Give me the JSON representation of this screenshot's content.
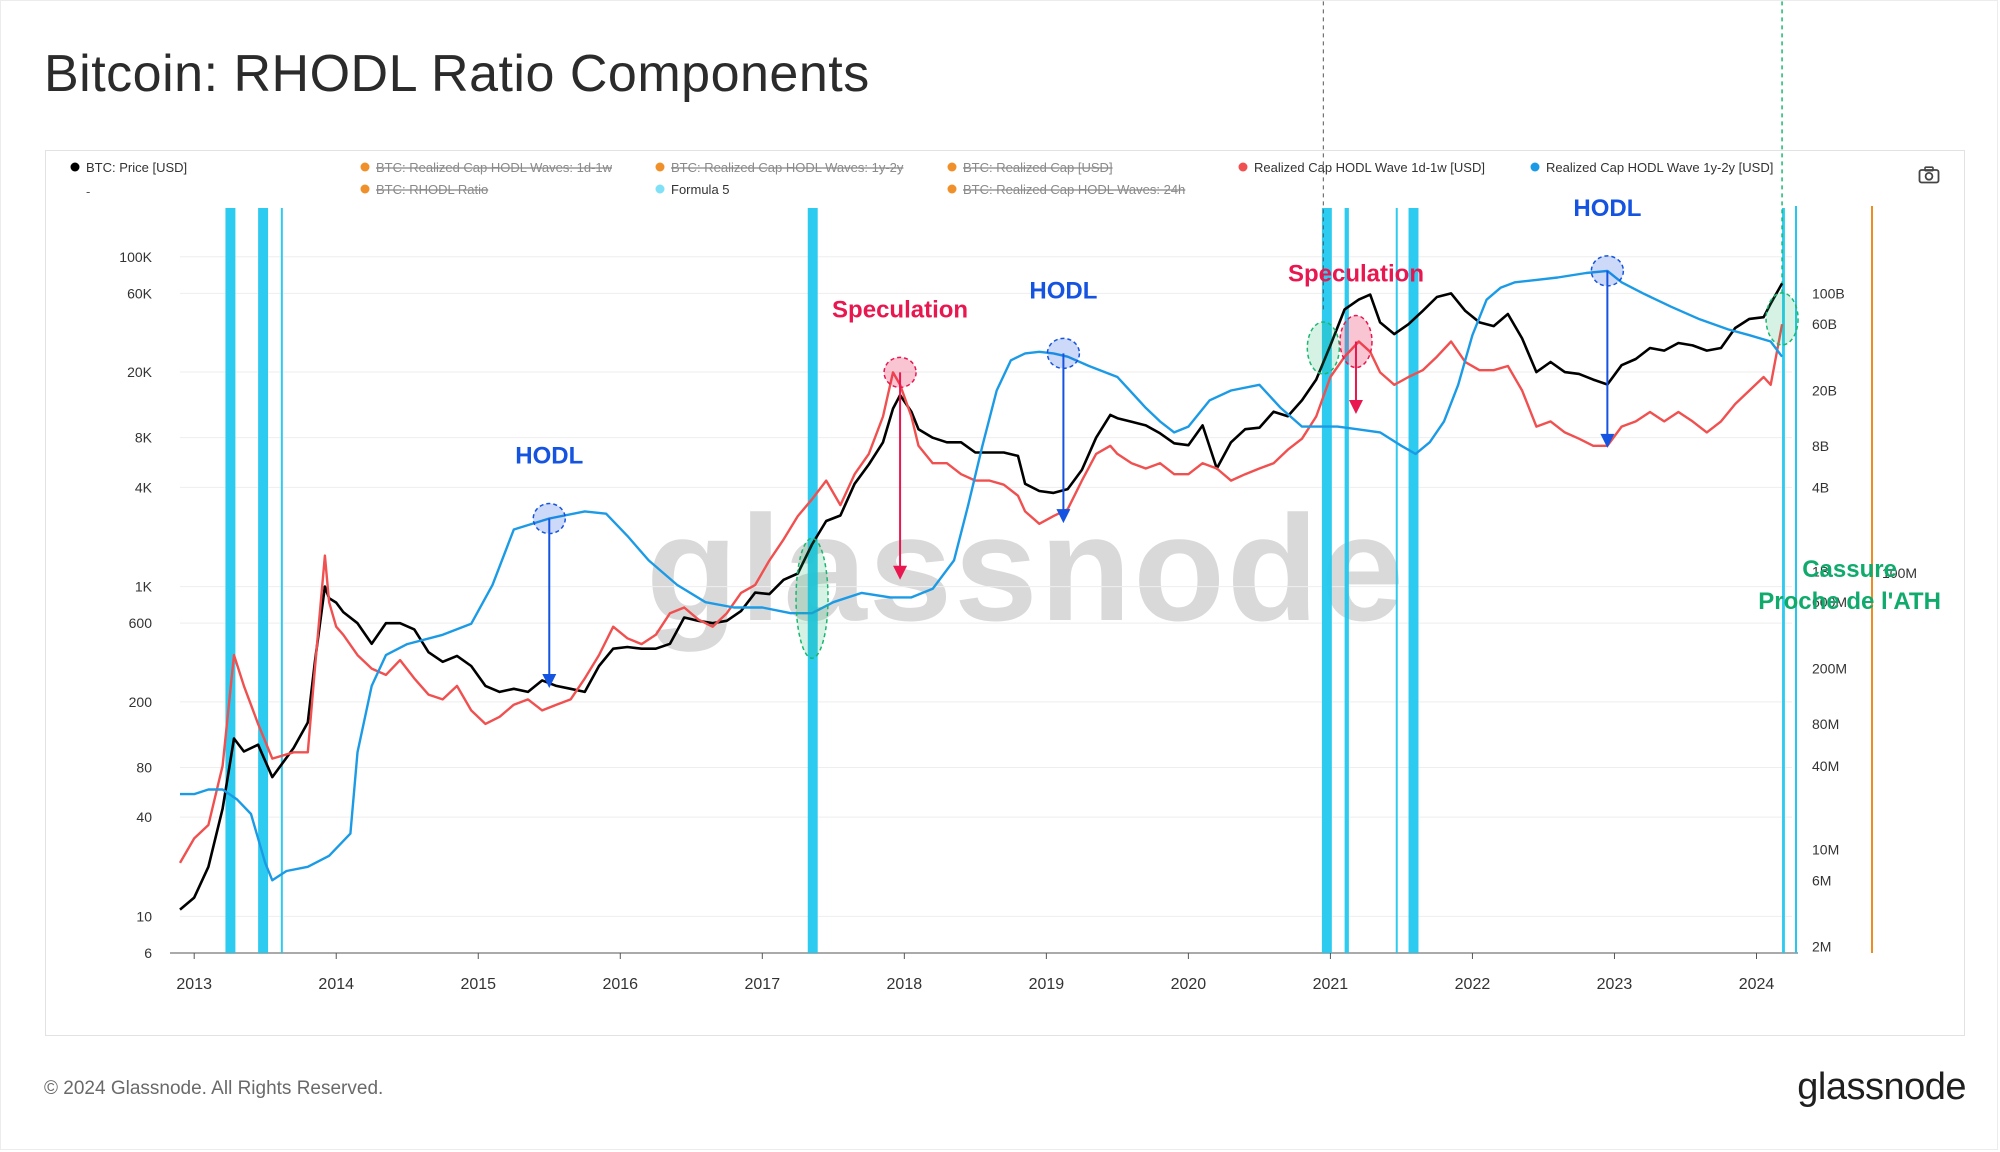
{
  "title": "Bitcoin: RHODL Ratio Components",
  "footer": {
    "copyright": "© 2024 Glassnode. All Rights Reserved.",
    "logo": "glassnode"
  },
  "watermark": "glassnode",
  "toolbar": {
    "camera_icon": "camera-icon"
  },
  "colors": {
    "price": "#000000",
    "wave_1d1w": "#f0504f",
    "wave_1y2y": "#1b9be6",
    "formula5": "#22c8ee",
    "disabled": "#f0902a",
    "speculation": "#e8174f",
    "hodl": "#1554e0",
    "cassure": "#10ab6c",
    "ref_line": "#19b86e",
    "orange_axis": "#ee8b22"
  },
  "chart_data": {
    "type": "line",
    "title": "Bitcoin: RHODL Ratio Components",
    "legend": [
      {
        "label": "BTC: Price [USD]",
        "color": "#000000",
        "disabled": false
      },
      {
        "label": "BTC: Realized Cap HODL Waves: 1d-1w",
        "color": "#f0902a",
        "disabled": true
      },
      {
        "label": "BTC: Realized Cap HODL Waves: 1y-2y",
        "color": "#f0902a",
        "disabled": true
      },
      {
        "label": "BTC: Realized Cap [USD]",
        "color": "#f0902a",
        "disabled": true
      },
      {
        "label": "Realized Cap HODL Wave 1d-1w [USD]",
        "color": "#f0504f",
        "disabled": false
      },
      {
        "label": "Realized Cap HODL Wave 1y-2y [USD]",
        "color": "#1b9be6",
        "disabled": false
      },
      {
        "label": "BTC: RHODL Ratio",
        "color": "#f0902a",
        "disabled": true
      },
      {
        "label": "Formula 5",
        "color": "#7fe0f6",
        "disabled": false
      },
      {
        "label": "BTC: Realized Cap HODL Waves: 24h",
        "color": "#f0902a",
        "disabled": true
      }
    ],
    "legend_dash": "-",
    "x_ticks": [
      "2013",
      "2014",
      "2015",
      "2016",
      "2017",
      "2018",
      "2019",
      "2020",
      "2021",
      "2022",
      "2023",
      "2024"
    ],
    "x_range": [
      2012.9,
      2024.25
    ],
    "y_left": {
      "scale": "log",
      "range": [
        6,
        130000
      ],
      "ticks": [
        {
          "v": 6,
          "label": "6"
        },
        {
          "v": 10,
          "label": "10"
        },
        {
          "v": 40,
          "label": "40"
        },
        {
          "v": 80,
          "label": "80"
        },
        {
          "v": 200,
          "label": "200"
        },
        {
          "v": 600,
          "label": "600"
        },
        {
          "v": 1000,
          "label": "1K"
        },
        {
          "v": 4000,
          "label": "4K"
        },
        {
          "v": 8000,
          "label": "8K"
        },
        {
          "v": 20000,
          "label": "20K"
        },
        {
          "v": 60000,
          "label": "60K"
        },
        {
          "v": 100000,
          "label": "100K"
        }
      ]
    },
    "y_right": {
      "scale": "log",
      "range": [
        1800000.0,
        250000000000.0
      ],
      "ticks": [
        {
          "v": 2000000.0,
          "label": "2M"
        },
        {
          "v": 6000000.0,
          "label": "6M"
        },
        {
          "v": 10000000.0,
          "label": "10M"
        },
        {
          "v": 40000000.0,
          "label": "40M"
        },
        {
          "v": 80000000.0,
          "label": "80M"
        },
        {
          "v": 200000000.0,
          "label": "200M"
        },
        {
          "v": 600000000.0,
          "label": "600M"
        },
        {
          "v": 1000000000.0,
          "label": "1B"
        },
        {
          "v": 4000000000.0,
          "label": "4B"
        },
        {
          "v": 8000000000.0,
          "label": "8B"
        },
        {
          "v": 20000000000.0,
          "label": "20B"
        },
        {
          "v": 60000000000.0,
          "label": "60B"
        },
        {
          "v": 100000000000.0,
          "label": "100B"
        }
      ]
    },
    "orange_axis_label": "100M",
    "series": [
      {
        "name": "BTC: Price [USD]",
        "axis": "left",
        "color": "#000000",
        "x": [
          2012.9,
          2013.0,
          2013.1,
          2013.2,
          2013.28,
          2013.35,
          2013.45,
          2013.55,
          2013.7,
          2013.8,
          2013.85,
          2013.92,
          2013.95,
          2014.0,
          2014.05,
          2014.15,
          2014.25,
          2014.35,
          2014.45,
          2014.55,
          2014.65,
          2014.75,
          2014.85,
          2014.95,
          2015.05,
          2015.15,
          2015.25,
          2015.35,
          2015.45,
          2015.55,
          2015.65,
          2015.75,
          2015.85,
          2015.95,
          2016.05,
          2016.15,
          2016.25,
          2016.35,
          2016.45,
          2016.55,
          2016.65,
          2016.75,
          2016.85,
          2016.95,
          2017.05,
          2017.15,
          2017.25,
          2017.35,
          2017.45,
          2017.55,
          2017.65,
          2017.75,
          2017.85,
          2017.92,
          2017.97,
          2018.05,
          2018.1,
          2018.2,
          2018.3,
          2018.4,
          2018.5,
          2018.6,
          2018.7,
          2018.8,
          2018.85,
          2018.95,
          2019.05,
          2019.15,
          2019.25,
          2019.35,
          2019.45,
          2019.5,
          2019.6,
          2019.7,
          2019.8,
          2019.9,
          2020.0,
          2020.1,
          2020.2,
          2020.3,
          2020.4,
          2020.5,
          2020.6,
          2020.7,
          2020.8,
          2020.9,
          2021.0,
          2021.1,
          2021.2,
          2021.28,
          2021.35,
          2021.45,
          2021.55,
          2021.65,
          2021.75,
          2021.85,
          2021.95,
          2022.05,
          2022.15,
          2022.25,
          2022.35,
          2022.45,
          2022.55,
          2022.65,
          2022.75,
          2022.85,
          2022.95,
          2023.05,
          2023.15,
          2023.25,
          2023.35,
          2023.45,
          2023.55,
          2023.65,
          2023.75,
          2023.85,
          2023.95,
          2024.05,
          2024.1,
          2024.18
        ],
        "values": [
          11,
          13,
          20,
          45,
          120,
          100,
          110,
          70,
          105,
          150,
          350,
          1000,
          850,
          800,
          700,
          600,
          450,
          600,
          600,
          550,
          400,
          350,
          380,
          330,
          250,
          230,
          240,
          230,
          270,
          250,
          240,
          230,
          330,
          420,
          430,
          420,
          420,
          450,
          650,
          620,
          600,
          620,
          710,
          920,
          900,
          1100,
          1200,
          1800,
          2500,
          2700,
          4200,
          5500,
          7500,
          12000,
          14500,
          11500,
          9000,
          8000,
          7500,
          7500,
          6500,
          6500,
          6500,
          6200,
          4200,
          3800,
          3700,
          3900,
          5100,
          8000,
          11000,
          10500,
          10000,
          9500,
          8500,
          7400,
          7200,
          9500,
          5200,
          7500,
          9000,
          9200,
          11500,
          10800,
          13500,
          18000,
          29000,
          48000,
          55000,
          59000,
          40000,
          34000,
          39000,
          47000,
          57000,
          60000,
          47000,
          40000,
          38000,
          45000,
          32000,
          20000,
          23000,
          20000,
          19500,
          18000,
          16800,
          22000,
          24000,
          28000,
          27000,
          30000,
          29000,
          27000,
          28000,
          37000,
          42000,
          43000,
          52000,
          69000
        ]
      },
      {
        "name": "Realized Cap HODL Wave 1d-1w [USD]",
        "axis": "right",
        "color": "#f0504f",
        "x": [
          2012.9,
          2013.0,
          2013.1,
          2013.2,
          2013.28,
          2013.35,
          2013.45,
          2013.55,
          2013.7,
          2013.8,
          2013.85,
          2013.92,
          2013.95,
          2014.0,
          2014.05,
          2014.15,
          2014.25,
          2014.35,
          2014.45,
          2014.55,
          2014.65,
          2014.75,
          2014.85,
          2014.95,
          2015.05,
          2015.15,
          2015.25,
          2015.35,
          2015.45,
          2015.55,
          2015.65,
          2015.75,
          2015.85,
          2015.95,
          2016.05,
          2016.15,
          2016.25,
          2016.35,
          2016.45,
          2016.55,
          2016.65,
          2016.75,
          2016.85,
          2016.95,
          2017.05,
          2017.15,
          2017.25,
          2017.35,
          2017.45,
          2017.55,
          2017.65,
          2017.75,
          2017.85,
          2017.92,
          2017.97,
          2018.05,
          2018.1,
          2018.2,
          2018.3,
          2018.4,
          2018.5,
          2018.6,
          2018.7,
          2018.8,
          2018.85,
          2018.95,
          2019.05,
          2019.15,
          2019.25,
          2019.35,
          2019.45,
          2019.5,
          2019.6,
          2019.7,
          2019.8,
          2019.9,
          2020.0,
          2020.1,
          2020.2,
          2020.3,
          2020.4,
          2020.5,
          2020.6,
          2020.7,
          2020.8,
          2020.9,
          2021.0,
          2021.1,
          2021.2,
          2021.28,
          2021.35,
          2021.45,
          2021.55,
          2021.65,
          2021.75,
          2021.85,
          2021.95,
          2022.05,
          2022.15,
          2022.25,
          2022.35,
          2022.45,
          2022.55,
          2022.65,
          2022.75,
          2022.85,
          2022.95,
          2023.05,
          2023.15,
          2023.25,
          2023.35,
          2023.45,
          2023.55,
          2023.65,
          2023.75,
          2023.85,
          2023.95,
          2024.05,
          2024.1,
          2024.18
        ],
        "values": [
          8000000.0,
          12000000.0,
          15000000.0,
          40000000.0,
          250000000.0,
          150000000.0,
          80000000.0,
          45000000.0,
          50000000.0,
          50000000.0,
          200000000.0,
          1300000000.0,
          600000000.0,
          400000000.0,
          350000000.0,
          250000000.0,
          200000000.0,
          180000000.0,
          230000000.0,
          170000000.0,
          130000000.0,
          120000000.0,
          150000000.0,
          100000000.0,
          80000000.0,
          90000000.0,
          110000000.0,
          120000000.0,
          100000000.0,
          110000000.0,
          120000000.0,
          170000000.0,
          250000000.0,
          400000000.0,
          330000000.0,
          300000000.0,
          350000000.0,
          500000000.0,
          550000000.0,
          450000000.0,
          400000000.0,
          500000000.0,
          700000000.0,
          800000000.0,
          1200000000.0,
          1700000000.0,
          2500000000.0,
          3300000000.0,
          4500000000.0,
          3000000000.0,
          5000000000.0,
          7000000000.0,
          13000000000.0,
          27000000000.0,
          22000000000.0,
          13000000000.0,
          8000000000.0,
          6000000000.0,
          6000000000.0,
          5000000000.0,
          4500000000.0,
          4500000000.0,
          4200000000.0,
          3500000000.0,
          2700000000.0,
          2200000000.0,
          2500000000.0,
          2800000000.0,
          4500000000.0,
          7000000000.0,
          8000000000.0,
          7000000000.0,
          6000000000.0,
          5500000000.0,
          6000000000.0,
          5000000000.0,
          5000000000.0,
          6000000000.0,
          5500000000.0,
          4500000000.0,
          5000000000.0,
          5500000000.0,
          6000000000.0,
          7500000000.0,
          9000000000.0,
          13000000000.0,
          25000000000.0,
          35000000000.0,
          45000000000.0,
          38000000000.0,
          27000000000.0,
          22000000000.0,
          25000000000.0,
          28000000000.0,
          35000000000.0,
          45000000000.0,
          32000000000.0,
          28000000000.0,
          28000000000.0,
          30000000000.0,
          20000000000.0,
          11000000000.0,
          12000000000.0,
          10000000000.0,
          9000000000.0,
          8000000000.0,
          8000000000.0,
          11000000000.0,
          12000000000.0,
          14000000000.0,
          12000000000.0,
          14000000000.0,
          12000000000.0,
          10000000000.0,
          12000000000.0,
          16000000000.0,
          20000000000.0,
          25000000000.0,
          22000000000.0,
          60000000000.0
        ]
      },
      {
        "name": "Realized Cap HODL Wave 1y-2y [USD]",
        "axis": "right",
        "color": "#1b9be6",
        "x": [
          2012.9,
          2013.0,
          2013.1,
          2013.2,
          2013.3,
          2013.4,
          2013.5,
          2013.55,
          2013.65,
          2013.8,
          2013.95,
          2014.1,
          2014.15,
          2014.25,
          2014.35,
          2014.5,
          2014.75,
          2014.95,
          2015.1,
          2015.25,
          2015.5,
          2015.75,
          2015.9,
          2016.05,
          2016.2,
          2016.4,
          2016.6,
          2016.8,
          2017.0,
          2017.2,
          2017.35,
          2017.5,
          2017.7,
          2017.9,
          2018.05,
          2018.2,
          2018.35,
          2018.45,
          2018.55,
          2018.65,
          2018.75,
          2018.85,
          2018.95,
          2019.05,
          2019.15,
          2019.3,
          2019.5,
          2019.7,
          2019.8,
          2019.9,
          2020.0,
          2020.15,
          2020.3,
          2020.5,
          2020.65,
          2020.8,
          2020.95,
          2021.05,
          2021.2,
          2021.35,
          2021.5,
          2021.6,
          2021.7,
          2021.8,
          2021.9,
          2022.0,
          2022.1,
          2022.2,
          2022.3,
          2022.45,
          2022.6,
          2022.8,
          2022.95,
          2023.05,
          2023.2,
          2023.4,
          2023.6,
          2023.8,
          2023.95,
          2024.1,
          2024.18
        ],
        "values": [
          25000000.0,
          25000000.0,
          27000000.0,
          27000000.0,
          23000000.0,
          18000000.0,
          8000000.0,
          6000000.0,
          7000000.0,
          7500000.0,
          9000000.0,
          13000000.0,
          50000000.0,
          150000000.0,
          250000000.0,
          300000000.0,
          350000000.0,
          420000000.0,
          800000000.0,
          2000000000.0,
          2400000000.0,
          2700000000.0,
          2600000000.0,
          1800000000.0,
          1200000000.0,
          800000000.0,
          600000000.0,
          550000000.0,
          550000000.0,
          500000000.0,
          500000000.0,
          600000000.0,
          700000000.0,
          650000000.0,
          650000000.0,
          750000000.0,
          1200000000.0,
          3000000000.0,
          8000000000.0,
          20000000000.0,
          33000000000.0,
          37000000000.0,
          38000000000.0,
          37000000000.0,
          35000000000.0,
          30000000000.0,
          25000000000.0,
          15000000000.0,
          12000000000.0,
          10000000000.0,
          11000000000.0,
          17000000000.0,
          20000000000.0,
          22000000000.0,
          15000000000.0,
          11000000000.0,
          11000000000.0,
          11000000000.0,
          10500000000.0,
          10000000000.0,
          8000000000.0,
          7000000000.0,
          8500000000.0,
          12000000000.0,
          22000000000.0,
          50000000000.0,
          90000000000.0,
          110000000000.0,
          120000000000.0,
          125000000000.0,
          130000000000.0,
          140000000000.0,
          145000000000.0,
          120000000000.0,
          100000000000.0,
          80000000000.0,
          65000000000.0,
          55000000000.0,
          50000000000.0,
          45000000000.0,
          35000000000.0
        ]
      }
    ],
    "formula5_bars": [
      {
        "x0": 2013.22,
        "x1": 2013.29
      },
      {
        "x0": 2013.45,
        "x1": 2013.52
      },
      {
        "x0": 2013.61,
        "x1": 2013.62
      },
      {
        "x0": 2017.32,
        "x1": 2017.39
      },
      {
        "x0": 2020.94,
        "x1": 2021.01
      },
      {
        "x0": 2021.1,
        "x1": 2021.13
      },
      {
        "x0": 2021.46,
        "x1": 2021.47
      },
      {
        "x0": 2021.55,
        "x1": 2021.62
      },
      {
        "x0": 2024.18,
        "x1": 2024.2
      }
    ],
    "annotations": [
      {
        "label": "HODL",
        "kind": "hodl",
        "x": 2015.5,
        "y_top": 2400000000.0,
        "y_bottom": 150000000.0
      },
      {
        "label": "Speculation",
        "kind": "speculation",
        "x": 2017.97,
        "y_top": 27000000000.0,
        "y_bottom": 900000000.0
      },
      {
        "label": "HODL",
        "kind": "hodl",
        "x": 2019.12,
        "y_top": 37000000000.0,
        "y_bottom": 2300000000.0
      },
      {
        "label": "Speculation",
        "kind": "speculation",
        "x": 2021.18,
        "y_top": 45000000000.0,
        "y_bottom": 14000000000.0
      },
      {
        "label": "HODL",
        "kind": "hodl",
        "x": 2022.95,
        "y_top": 145000000000.0,
        "y_bottom": 8000000000.0
      }
    ],
    "cassure": {
      "line1": "Cassure",
      "line2": "Proche de l'ATH",
      "level": 600000000.0,
      "x0": 2017.35,
      "x1": 2024.18
    },
    "grid": true
  }
}
